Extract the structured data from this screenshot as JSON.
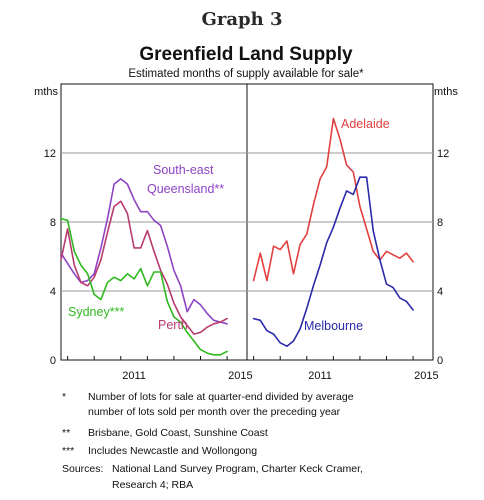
{
  "header": {
    "graph_label": "Graph 3",
    "title": "Greenfield Land Supply",
    "subtitle": "Estimated months of supply available for sale*"
  },
  "axes": {
    "unit_left": "mths",
    "unit_right": "mths",
    "y_ticks": [
      "0",
      "4",
      "8",
      "12"
    ]
  },
  "colors": {
    "south_east_queensland": "#8e44c2",
    "perth": "#b83a6e",
    "sydney": "#2fb81f",
    "adelaide": "#e24040",
    "melbourne": "#2a2aaa",
    "grid": "#9a9a9a",
    "frame": "#111111"
  },
  "chart_data": [
    {
      "type": "line",
      "panel": "left",
      "x_ticks": [
        "2011",
        "2015"
      ],
      "xlim": [
        2008.75,
        2015.75
      ],
      "ylim": [
        0,
        16
      ],
      "y_ticks": [
        0,
        4,
        8,
        12
      ],
      "grid": true,
      "series": [
        {
          "name": "South-east Queensland**",
          "x": [
            2008.75,
            2009.0,
            2009.25,
            2009.5,
            2009.75,
            2010.0,
            2010.25,
            2010.5,
            2010.75,
            2011.0,
            2011.25,
            2011.5,
            2011.75,
            2012.0,
            2012.25,
            2012.5,
            2012.75,
            2013.0,
            2013.25,
            2013.5,
            2013.75,
            2014.0,
            2014.25,
            2014.5,
            2014.75,
            2015.0
          ],
          "values": [
            6.2,
            5.6,
            5.0,
            4.5,
            4.6,
            5.0,
            6.5,
            8.2,
            10.2,
            10.5,
            10.2,
            9.3,
            8.6,
            8.6,
            8.1,
            7.8,
            6.6,
            5.2,
            4.3,
            2.8,
            3.5,
            3.2,
            2.7,
            2.3,
            2.2,
            2.1
          ]
        },
        {
          "name": "Perth",
          "x": [
            2008.75,
            2009.0,
            2009.25,
            2009.5,
            2009.75,
            2010.0,
            2010.25,
            2010.5,
            2010.75,
            2011.0,
            2011.25,
            2011.5,
            2011.75,
            2012.0,
            2012.25,
            2012.5,
            2012.75,
            2013.0,
            2013.25,
            2013.5,
            2013.75,
            2014.0,
            2014.25,
            2014.5,
            2014.75,
            2015.0
          ],
          "values": [
            5.8,
            7.6,
            5.5,
            4.5,
            4.3,
            4.8,
            5.8,
            7.4,
            8.9,
            9.2,
            8.5,
            6.5,
            6.5,
            7.5,
            6.3,
            5.2,
            4.4,
            3.3,
            2.5,
            2.0,
            1.5,
            1.6,
            1.9,
            2.1,
            2.2,
            2.4
          ]
        },
        {
          "name": "Sydney***",
          "x": [
            2008.75,
            2009.0,
            2009.25,
            2009.5,
            2009.75,
            2010.0,
            2010.25,
            2010.5,
            2010.75,
            2011.0,
            2011.25,
            2011.5,
            2011.75,
            2012.0,
            2012.25,
            2012.5,
            2012.75,
            2013.0,
            2013.25,
            2013.5,
            2013.75,
            2014.0,
            2014.25,
            2014.5,
            2014.75,
            2015.0
          ],
          "values": [
            8.2,
            8.1,
            6.3,
            5.5,
            5.0,
            3.8,
            3.5,
            4.5,
            4.8,
            4.6,
            5.0,
            4.7,
            5.3,
            4.3,
            5.1,
            5.1,
            3.4,
            2.5,
            2.2,
            1.6,
            1.1,
            0.6,
            0.4,
            0.3,
            0.3,
            0.5
          ]
        }
      ]
    },
    {
      "type": "line",
      "panel": "right",
      "x_ticks": [
        "2011",
        "2015"
      ],
      "xlim": [
        2008.75,
        2015.75
      ],
      "ylim": [
        0,
        16
      ],
      "y_ticks": [
        0,
        4,
        8,
        12
      ],
      "grid": true,
      "series": [
        {
          "name": "Adelaide",
          "x": [
            2009.0,
            2009.25,
            2009.5,
            2009.75,
            2010.0,
            2010.25,
            2010.5,
            2010.75,
            2011.0,
            2011.25,
            2011.5,
            2011.75,
            2012.0,
            2012.25,
            2012.5,
            2012.75,
            2013.0,
            2013.25,
            2013.5,
            2013.75,
            2014.0,
            2014.25,
            2014.5,
            2014.75,
            2015.0
          ],
          "values": [
            4.6,
            6.2,
            4.6,
            6.6,
            6.4,
            6.9,
            5.0,
            6.7,
            7.3,
            9.0,
            10.5,
            11.2,
            14.0,
            12.8,
            11.3,
            10.9,
            8.9,
            7.6,
            6.3,
            5.8,
            6.3,
            6.1,
            5.9,
            6.2,
            5.7
          ]
        },
        {
          "name": "Melbourne",
          "x": [
            2009.0,
            2009.25,
            2009.5,
            2009.75,
            2010.0,
            2010.25,
            2010.5,
            2010.75,
            2011.0,
            2011.25,
            2011.5,
            2011.75,
            2012.0,
            2012.25,
            2012.5,
            2012.75,
            2013.0,
            2013.25,
            2013.5,
            2013.75,
            2014.0,
            2014.25,
            2014.5,
            2014.75,
            2015.0
          ],
          "values": [
            2.4,
            2.3,
            1.7,
            1.5,
            1.0,
            0.8,
            1.1,
            1.8,
            3.0,
            4.3,
            5.5,
            6.8,
            7.7,
            8.8,
            9.8,
            9.6,
            10.6,
            10.6,
            7.5,
            5.8,
            4.4,
            4.2,
            3.6,
            3.4,
            2.9
          ]
        }
      ]
    }
  ],
  "series_labels": {
    "south_east_queensland_line1": "South-east",
    "south_east_queensland_line2": "Queensland**",
    "perth": "Perth",
    "sydney": "Sydney***",
    "adelaide": "Adelaide",
    "melbourne": "Melbourne"
  },
  "notes": {
    "n1_marker": "*",
    "n1_line1": "Number of lots for sale at quarter-end divided by average",
    "n1_line2": "number of lots sold per month over the preceding year",
    "n2_marker": "**",
    "n2_text": "Brisbane, Gold Coast, Sunshine Coast",
    "n3_marker": "***",
    "n3_text": "Includes Newcastle and Wollongong",
    "sources_label": "Sources:",
    "sources_line1": "National Land Survey Program, Charter Keck Cramer,",
    "sources_line2": "Research 4; RBA"
  }
}
